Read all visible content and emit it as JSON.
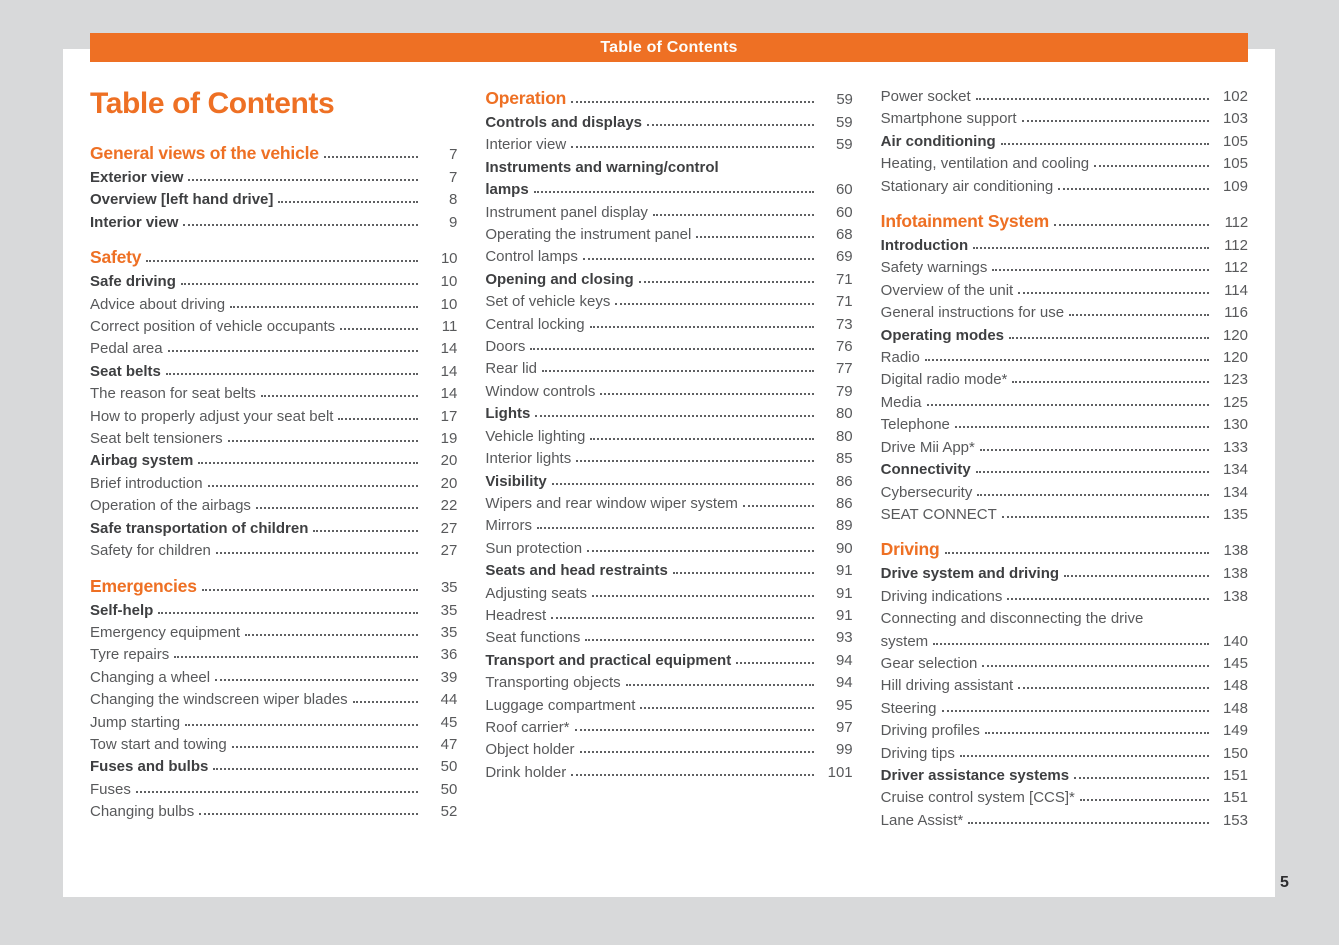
{
  "window": {
    "header_bar_label": "Table of Contents",
    "page_title": "Table of Contents",
    "corner_page_number": "5"
  },
  "colors": {
    "accent_orange": "#ee7024",
    "body_text": "#58595b",
    "bold_text": "#3e3f41",
    "background_gray": "#d8d9da",
    "page_background": "#ffffff"
  },
  "toc": {
    "columns": [
      {
        "blocks": [
          {
            "entries": [
              {
                "level": "chapter",
                "label": "General views of the vehicle",
                "page": "7"
              },
              {
                "level": "section",
                "label": "Exterior view",
                "page": "7"
              },
              {
                "level": "section",
                "label": "Overview [left hand drive]",
                "page": "8"
              },
              {
                "level": "section",
                "label": "Interior view",
                "page": "9"
              }
            ]
          },
          {
            "entries": [
              {
                "level": "chapter",
                "label": "Safety",
                "page": "10"
              },
              {
                "level": "section",
                "label": "Safe driving",
                "page": "10"
              },
              {
                "level": "item",
                "label": "Advice about driving",
                "page": "10"
              },
              {
                "level": "item",
                "label": "Correct position of vehicle occupants",
                "page": "11"
              },
              {
                "level": "item",
                "label": "Pedal area",
                "page": "14"
              },
              {
                "level": "section",
                "label": "Seat belts",
                "page": "14"
              },
              {
                "level": "item",
                "label": "The reason for seat belts",
                "page": "14"
              },
              {
                "level": "item",
                "label": "How to properly adjust your seat belt",
                "page": "17"
              },
              {
                "level": "item",
                "label": "Seat belt tensioners",
                "page": "19"
              },
              {
                "level": "section",
                "label": "Airbag system",
                "page": "20"
              },
              {
                "level": "item",
                "label": "Brief introduction",
                "page": "20"
              },
              {
                "level": "item",
                "label": "Operation of the airbags",
                "page": "22"
              },
              {
                "level": "section",
                "label": "Safe transportation of children",
                "page": "27"
              },
              {
                "level": "item",
                "label": "Safety for children",
                "page": "27"
              }
            ]
          },
          {
            "entries": [
              {
                "level": "chapter",
                "label": "Emergencies",
                "page": "35"
              },
              {
                "level": "section",
                "label": "Self-help",
                "page": "35"
              },
              {
                "level": "item",
                "label": "Emergency equipment",
                "page": "35"
              },
              {
                "level": "item",
                "label": "Tyre repairs",
                "page": "36"
              },
              {
                "level": "item",
                "label": "Changing a wheel",
                "page": "39"
              },
              {
                "level": "item",
                "label": "Changing the windscreen wiper blades",
                "page": "44"
              },
              {
                "level": "item",
                "label": "Jump starting",
                "page": "45"
              },
              {
                "level": "item",
                "label": "Tow start and towing",
                "page": "47"
              },
              {
                "level": "section",
                "label": "Fuses and bulbs",
                "page": "50"
              },
              {
                "level": "item",
                "label": "Fuses",
                "page": "50"
              },
              {
                "level": "item",
                "label": "Changing bulbs",
                "page": "52"
              }
            ]
          }
        ]
      },
      {
        "blocks": [
          {
            "entries": [
              {
                "level": "chapter",
                "label": "Operation",
                "page": "59"
              },
              {
                "level": "section",
                "label": "Controls and displays",
                "page": "59"
              },
              {
                "level": "item",
                "label": "Interior view",
                "page": "59"
              },
              {
                "level": "section",
                "pre": "Instruments and warning/control",
                "label": "lamps",
                "page": "60"
              },
              {
                "level": "item",
                "label": "Instrument panel display",
                "page": "60"
              },
              {
                "level": "item",
                "label": "Operating the instrument panel",
                "page": "68"
              },
              {
                "level": "item",
                "label": "Control lamps",
                "page": "69"
              },
              {
                "level": "section",
                "label": "Opening and closing",
                "page": "71"
              },
              {
                "level": "item",
                "label": "Set of vehicle keys",
                "page": "71"
              },
              {
                "level": "item",
                "label": "Central locking",
                "page": "73"
              },
              {
                "level": "item",
                "label": "Doors",
                "page": "76"
              },
              {
                "level": "item",
                "label": "Rear lid",
                "page": "77"
              },
              {
                "level": "item",
                "label": "Window controls",
                "page": "79"
              },
              {
                "level": "section",
                "label": "Lights",
                "page": "80"
              },
              {
                "level": "item",
                "label": "Vehicle lighting",
                "page": "80"
              },
              {
                "level": "item",
                "label": "Interior lights",
                "page": "85"
              },
              {
                "level": "section",
                "label": "Visibility",
                "page": "86"
              },
              {
                "level": "item",
                "label": "Wipers and rear window wiper system",
                "page": "86"
              },
              {
                "level": "item",
                "label": "Mirrors",
                "page": "89"
              },
              {
                "level": "item",
                "label": "Sun protection",
                "page": "90"
              },
              {
                "level": "section",
                "label": "Seats and head restraints",
                "page": "91"
              },
              {
                "level": "item",
                "label": "Adjusting seats",
                "page": "91"
              },
              {
                "level": "item",
                "label": "Headrest",
                "page": "91"
              },
              {
                "level": "item",
                "label": "Seat functions",
                "page": "93"
              },
              {
                "level": "section",
                "label": "Transport and practical equipment",
                "page": "94"
              },
              {
                "level": "item",
                "label": "Transporting objects",
                "page": "94"
              },
              {
                "level": "item",
                "label": "Luggage compartment",
                "page": "95"
              },
              {
                "level": "item",
                "label": "Roof carrier*",
                "page": "97"
              },
              {
                "level": "item",
                "label": "Object holder",
                "page": "99"
              },
              {
                "level": "item",
                "label": "Drink holder",
                "page": "101"
              }
            ]
          }
        ]
      },
      {
        "blocks": [
          {
            "entries": [
              {
                "level": "item",
                "label": "Power socket",
                "page": "102"
              },
              {
                "level": "item",
                "label": "Smartphone support",
                "page": "103"
              },
              {
                "level": "section",
                "label": "Air conditioning",
                "page": "105"
              },
              {
                "level": "item",
                "label": "Heating, ventilation and cooling",
                "page": "105"
              },
              {
                "level": "item",
                "label": "Stationary air conditioning",
                "page": "109"
              }
            ]
          },
          {
            "entries": [
              {
                "level": "chapter",
                "label": "Infotainment System",
                "page": "112"
              },
              {
                "level": "section",
                "label": "Introduction",
                "page": "112"
              },
              {
                "level": "item",
                "label": "Safety warnings",
                "page": "112"
              },
              {
                "level": "item",
                "label": "Overview of the unit",
                "page": "114"
              },
              {
                "level": "item",
                "label": "General instructions for use",
                "page": "116"
              },
              {
                "level": "section",
                "label": "Operating modes",
                "page": "120"
              },
              {
                "level": "item",
                "label": "Radio",
                "page": "120"
              },
              {
                "level": "item",
                "label": "Digital radio mode*",
                "page": "123"
              },
              {
                "level": "item",
                "label": "Media",
                "page": "125"
              },
              {
                "level": "item",
                "label": "Telephone",
                "page": "130"
              },
              {
                "level": "item",
                "label": "Drive Mii App*",
                "page": "133"
              },
              {
                "level": "section",
                "label": "Connectivity",
                "page": "134"
              },
              {
                "level": "item",
                "label": "Cybersecurity",
                "page": "134"
              },
              {
                "level": "item",
                "label": "SEAT CONNECT",
                "page": "135"
              }
            ]
          },
          {
            "entries": [
              {
                "level": "chapter",
                "label": "Driving",
                "page": "138"
              },
              {
                "level": "section",
                "label": "Drive system and driving",
                "page": "138"
              },
              {
                "level": "item",
                "label": "Driving indications",
                "page": "138"
              },
              {
                "level": "item",
                "pre": "Connecting and disconnecting the drive",
                "label": "system",
                "page": "140"
              },
              {
                "level": "item",
                "label": "Gear selection",
                "page": "145"
              },
              {
                "level": "item",
                "label": "Hill driving assistant",
                "page": "148"
              },
              {
                "level": "item",
                "label": "Steering",
                "page": "148"
              },
              {
                "level": "item",
                "label": "Driving profiles",
                "page": "149"
              },
              {
                "level": "item",
                "label": "Driving tips",
                "page": "150"
              },
              {
                "level": "section",
                "label": "Driver assistance systems",
                "page": "151"
              },
              {
                "level": "item",
                "label": "Cruise control system [CCS]*",
                "page": "151"
              },
              {
                "level": "item",
                "label": "Lane Assist*",
                "page": "153"
              }
            ]
          }
        ]
      }
    ]
  }
}
